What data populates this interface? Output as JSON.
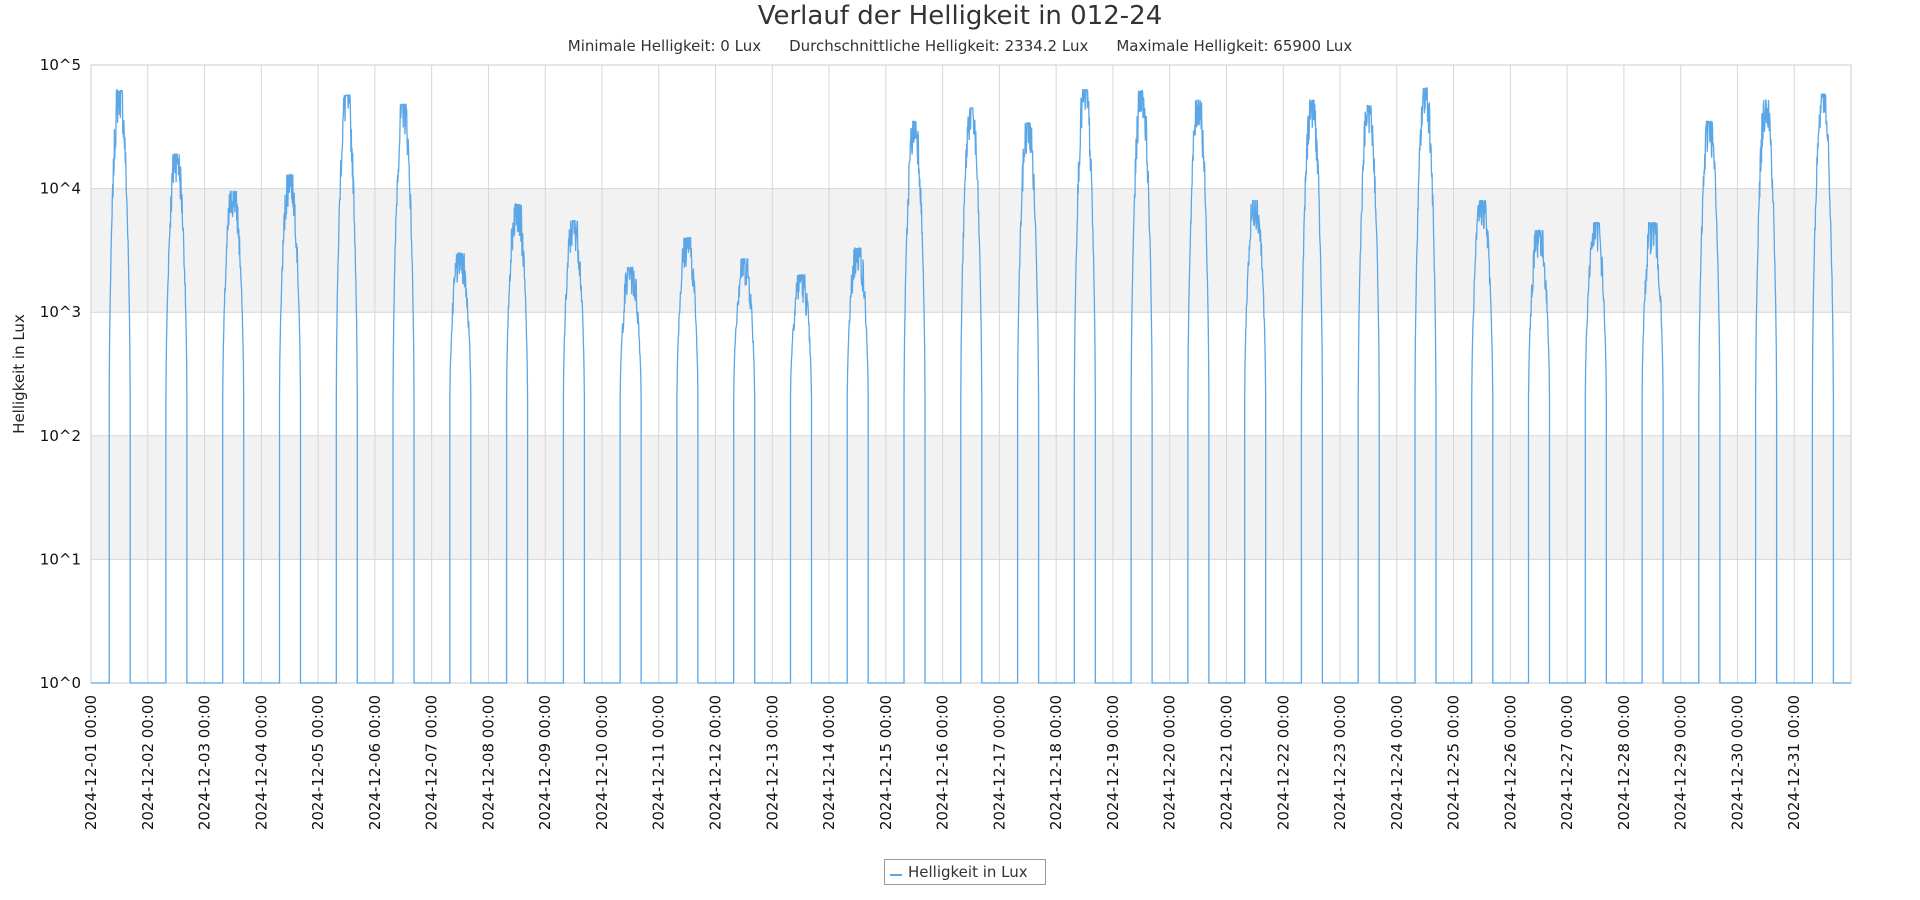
{
  "title": "Verlauf der Helligkeit in 012-24",
  "subtitle": {
    "min": "Minimale Helligkeit: 0 Lux",
    "avg": "Durchschnittliche Helligkeit: 2334.2 Lux",
    "max": "Maximale Helligkeit: 65900 Lux"
  },
  "legend": {
    "label": "Helligkeit in Lux",
    "color": "#5aa6e6"
  },
  "colors": {
    "line": "#5aa6e6",
    "band": "#f2f2f2",
    "grid": "#d6d6d6"
  },
  "chart_data": {
    "type": "line",
    "title": "Verlauf der Helligkeit in 012-24",
    "ylabel": "Helligkeit in Lux",
    "xlabel": "",
    "y_scale": "log",
    "ylim": [
      1,
      100000
    ],
    "y_tick_labels": [
      "10^0",
      "10^1",
      "10^2",
      "10^3",
      "10^4",
      "10^5"
    ],
    "shaded_bands": [
      [
        10,
        100
      ],
      [
        1000,
        10000
      ]
    ],
    "grid": true,
    "legend_placement": "bottom-center",
    "x_tick_labels": [
      "2024-12-01 00:00",
      "2024-12-02 00:00",
      "2024-12-03 00:00",
      "2024-12-04 00:00",
      "2024-12-05 00:00",
      "2024-12-06 00:00",
      "2024-12-07 00:00",
      "2024-12-08 00:00",
      "2024-12-09 00:00",
      "2024-12-10 00:00",
      "2024-12-11 00:00",
      "2024-12-12 00:00",
      "2024-12-13 00:00",
      "2024-12-14 00:00",
      "2024-12-15 00:00",
      "2024-12-16 00:00",
      "2024-12-17 00:00",
      "2024-12-18 00:00",
      "2024-12-19 00:00",
      "2024-12-20 00:00",
      "2024-12-21 00:00",
      "2024-12-22 00:00",
      "2024-12-23 00:00",
      "2024-12-24 00:00",
      "2024-12-25 00:00",
      "2024-12-26 00:00",
      "2024-12-27 00:00",
      "2024-12-28 00:00",
      "2024-12-29 00:00",
      "2024-12-30 00:00",
      "2024-12-31 00:00"
    ],
    "series": [
      {
        "name": "Helligkeit in Lux",
        "daily_peaks": [
          {
            "date": "2024-12-01",
            "peak": 62000
          },
          {
            "date": "2024-12-02",
            "peak": 19000
          },
          {
            "date": "2024-12-03",
            "peak": 9500
          },
          {
            "date": "2024-12-04",
            "peak": 13000
          },
          {
            "date": "2024-12-05",
            "peak": 57000
          },
          {
            "date": "2024-12-06",
            "peak": 48000
          },
          {
            "date": "2024-12-07",
            "peak": 3000
          },
          {
            "date": "2024-12-08",
            "peak": 7500
          },
          {
            "date": "2024-12-09",
            "peak": 5500
          },
          {
            "date": "2024-12-10",
            "peak": 2300
          },
          {
            "date": "2024-12-11",
            "peak": 4000
          },
          {
            "date": "2024-12-12",
            "peak": 2700
          },
          {
            "date": "2024-12-13",
            "peak": 2000
          },
          {
            "date": "2024-12-14",
            "peak": 3300
          },
          {
            "date": "2024-12-15",
            "peak": 35000
          },
          {
            "date": "2024-12-16",
            "peak": 45000
          },
          {
            "date": "2024-12-17",
            "peak": 34000
          },
          {
            "date": "2024-12-18",
            "peak": 63000
          },
          {
            "date": "2024-12-19",
            "peak": 62000
          },
          {
            "date": "2024-12-20",
            "peak": 52000
          },
          {
            "date": "2024-12-21",
            "peak": 8000
          },
          {
            "date": "2024-12-22",
            "peak": 52000
          },
          {
            "date": "2024-12-23",
            "peak": 47000
          },
          {
            "date": "2024-12-24",
            "peak": 65000
          },
          {
            "date": "2024-12-25",
            "peak": 8000
          },
          {
            "date": "2024-12-26",
            "peak": 4600
          },
          {
            "date": "2024-12-27",
            "peak": 5300
          },
          {
            "date": "2024-12-28",
            "peak": 5300
          },
          {
            "date": "2024-12-29",
            "peak": 35000
          },
          {
            "date": "2024-12-30",
            "peak": 52000
          },
          {
            "date": "2024-12-31",
            "peak": 58000
          }
        ]
      }
    ]
  }
}
